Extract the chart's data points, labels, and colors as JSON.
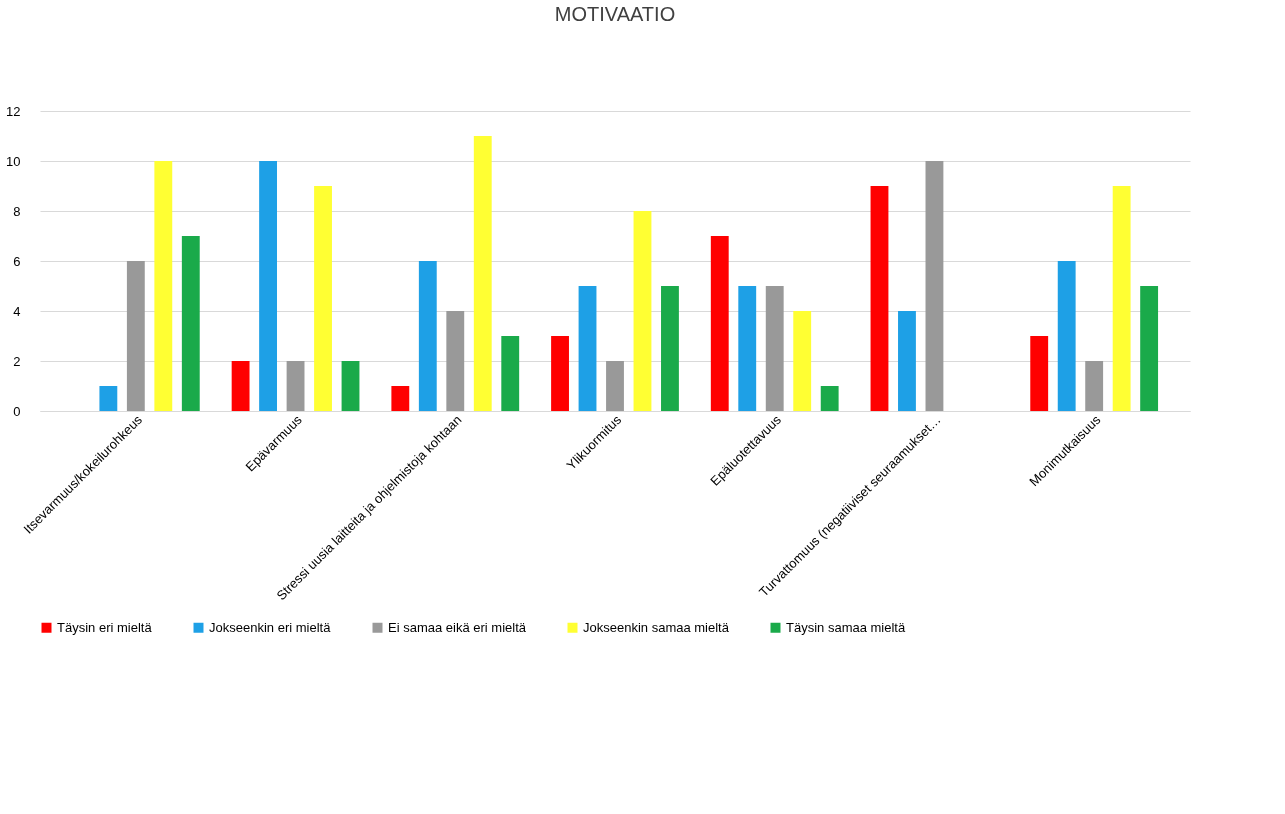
{
  "chart_data": {
    "type": "bar",
    "title": "MOTIVAATIO",
    "categories": [
      "Itsevarmuus/kokeilurohkeus",
      "Epävarmuus",
      "Stressi uusia laitteita ja ohjelmistoja kohtaan",
      "Ylikuormitus",
      "Epäluotettavuus",
      "Turvattomuus (negatiiviset seuraamukset…",
      "Monimutkaisuus"
    ],
    "series": [
      {
        "name": "Täysin eri mieltä",
        "color": "#ff0000",
        "values": [
          0,
          2,
          1,
          3,
          7,
          9,
          3
        ]
      },
      {
        "name": "Jokseenkin eri mieltä",
        "color": "#1ea0e6",
        "values": [
          1,
          10,
          6,
          5,
          5,
          4,
          6
        ]
      },
      {
        "name": "Ei samaa eikä eri mieltä",
        "color": "#999999",
        "values": [
          6,
          2,
          4,
          2,
          5,
          10,
          2
        ]
      },
      {
        "name": "Jokseenkin samaa mieltä",
        "color": "#ffff33",
        "values": [
          10,
          9,
          11,
          8,
          4,
          0,
          9
        ]
      },
      {
        "name": "Täysin samaa mieltä",
        "color": "#1aaa4a",
        "values": [
          7,
          2,
          3,
          5,
          1,
          0,
          5
        ]
      }
    ],
    "ylim": [
      0,
      12
    ],
    "yticks": [
      0,
      2,
      4,
      6,
      8,
      10,
      12
    ],
    "grid": "y",
    "legend": "bottom"
  }
}
